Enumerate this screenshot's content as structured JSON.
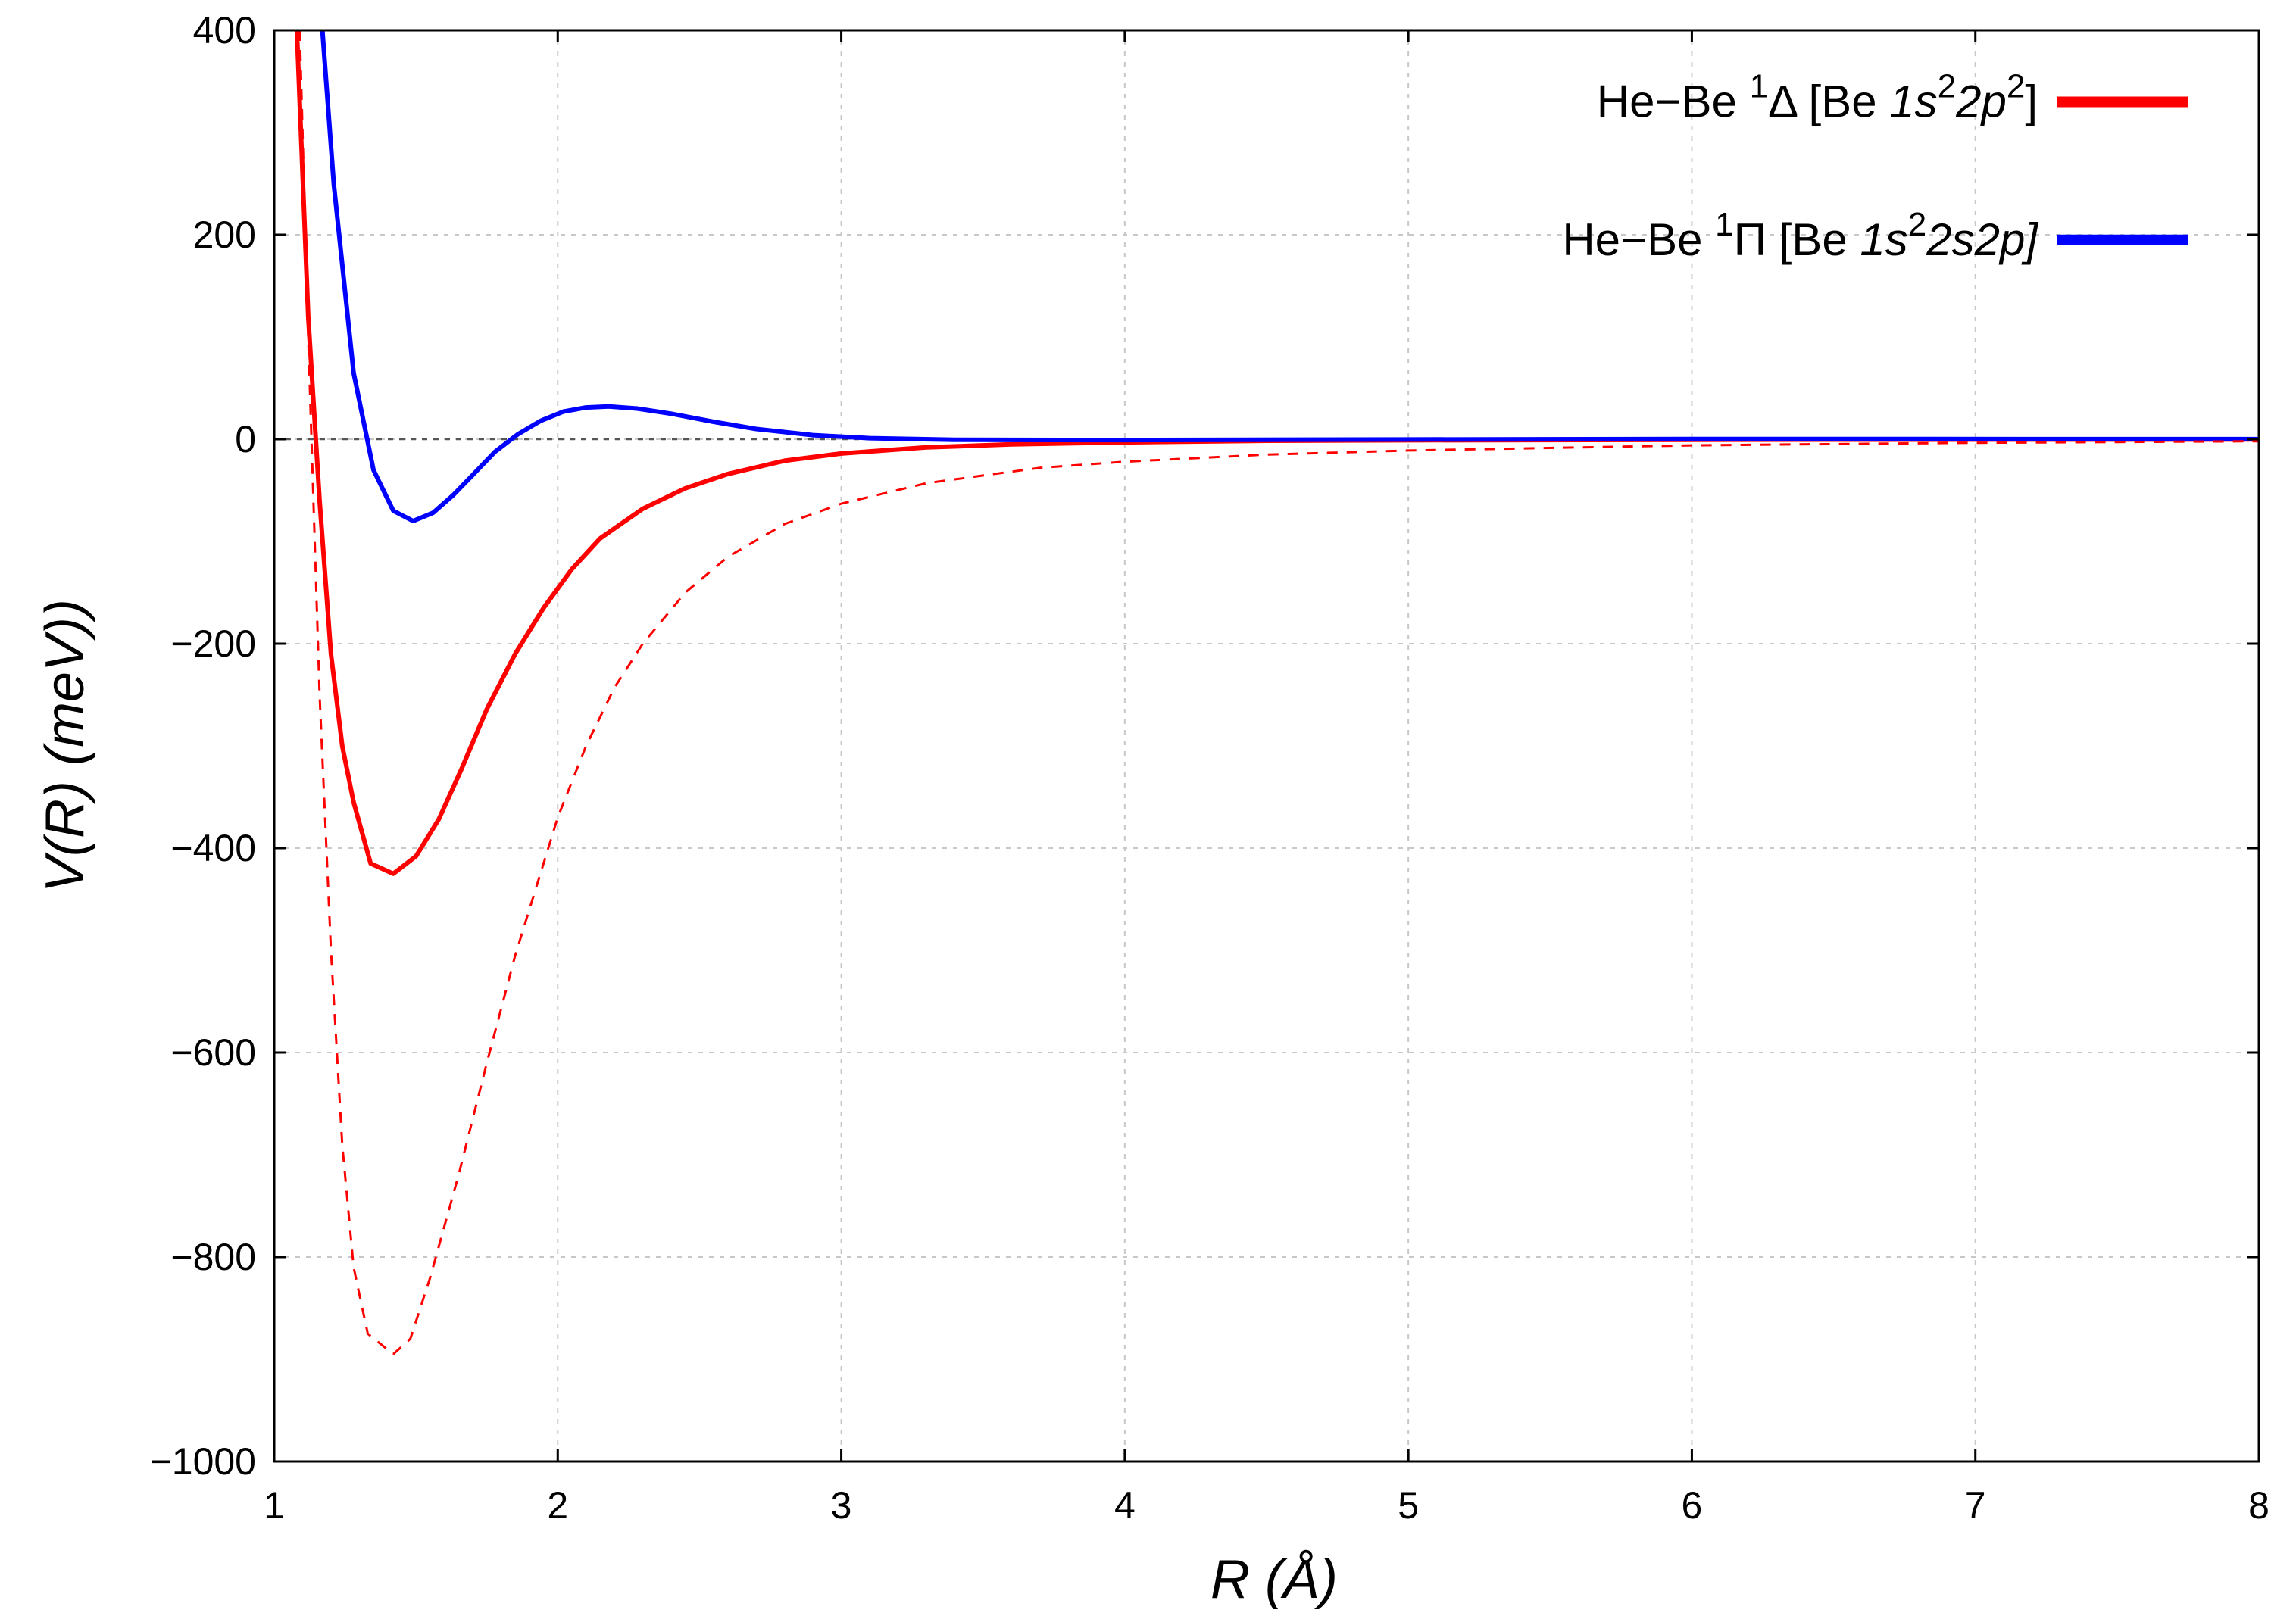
{
  "chart_data": {
    "type": "line",
    "xlabel": "R  (Å)",
    "ylabel": "V(R) (meV))",
    "xlim": [
      1,
      8
    ],
    "ylim": [
      -1000,
      400
    ],
    "x_ticks": [
      "1",
      "2",
      "3",
      "4",
      "5",
      "6",
      "7",
      "8"
    ],
    "y_ticks": [
      "400",
      "200",
      "0",
      "−200",
      "−400",
      "−600",
      "−800",
      "−1000"
    ],
    "grid": true,
    "legend_position": "top-right",
    "zero_line": {
      "y": 0,
      "style": "dashed",
      "color": "#555555"
    },
    "series": [
      {
        "name": "He−Be ¹Δ [Be 1s²2p²]",
        "legend": {
          "prefix": "He−Be ",
          "sup1": "1",
          "symbol": "Δ",
          "open": " [Be ",
          "italic": "1s",
          "sup2": "2",
          "italic2": "2p",
          "sup3": "2",
          "close": "]"
        },
        "color": "#ff0000",
        "style": "solid",
        "x": [
          1.08,
          1.12,
          1.16,
          1.2,
          1.24,
          1.28,
          1.34,
          1.42,
          1.5,
          1.58,
          1.66,
          1.75,
          1.85,
          1.95,
          2.05,
          2.15,
          2.3,
          2.45,
          2.6,
          2.8,
          3.0,
          3.3,
          3.6,
          4.0,
          4.5,
          5.0,
          6.0,
          7.0,
          8.0
        ],
        "y": [
          400,
          120,
          -60,
          -210,
          -300,
          -355,
          -415,
          -425,
          -408,
          -372,
          -323,
          -264,
          -210,
          -165,
          -127,
          -97,
          -68,
          -48,
          -34,
          -21,
          -14,
          -8,
          -5,
          -3,
          -1.5,
          -1,
          -0.5,
          -0.3,
          -0.2
        ]
      },
      {
        "name": "He−Be ¹Π [Be 1s²2s2p]",
        "legend": {
          "prefix": "He−Be ",
          "sup1": "1",
          "symbol": "Π",
          "open": " [Be ",
          "italic": "1s",
          "sup2": "2",
          "italic2": "2s2p]",
          "sup3": "",
          "close": ""
        },
        "color": "#0000ff",
        "style": "solid",
        "x": [
          1.17,
          1.21,
          1.28,
          1.35,
          1.42,
          1.49,
          1.56,
          1.63,
          1.7,
          1.78,
          1.86,
          1.94,
          2.02,
          2.1,
          2.18,
          2.28,
          2.4,
          2.55,
          2.7,
          2.9,
          3.1,
          3.4,
          4.0,
          5.0,
          6.0,
          8.0
        ],
        "y": [
          400,
          250,
          65,
          -30,
          -70,
          -80,
          -72,
          -55,
          -35,
          -12,
          5,
          18,
          27,
          31,
          32,
          30,
          25,
          17,
          10,
          4,
          1,
          -0.5,
          -0.8,
          -0.3,
          0.2,
          0.1
        ]
      },
      {
        "name": "",
        "color": "#ff0000",
        "style": "dashed",
        "x": [
          1.09,
          1.12,
          1.16,
          1.2,
          1.24,
          1.28,
          1.33,
          1.42,
          1.48,
          1.55,
          1.65,
          1.75,
          1.85,
          2.0,
          2.1,
          2.2,
          2.3,
          2.45,
          2.6,
          2.8,
          3.0,
          3.3,
          3.7,
          4.0,
          4.5,
          5.0,
          6.0,
          7.0,
          8.0
        ],
        "y": [
          400,
          100,
          -250,
          -500,
          -690,
          -810,
          -875,
          -895,
          -880,
          -820,
          -720,
          -610,
          -505,
          -370,
          -300,
          -243,
          -200,
          -150,
          -115,
          -83,
          -63,
          -43,
          -28,
          -22,
          -15,
          -11,
          -6,
          -3.5,
          -2
        ]
      }
    ]
  }
}
